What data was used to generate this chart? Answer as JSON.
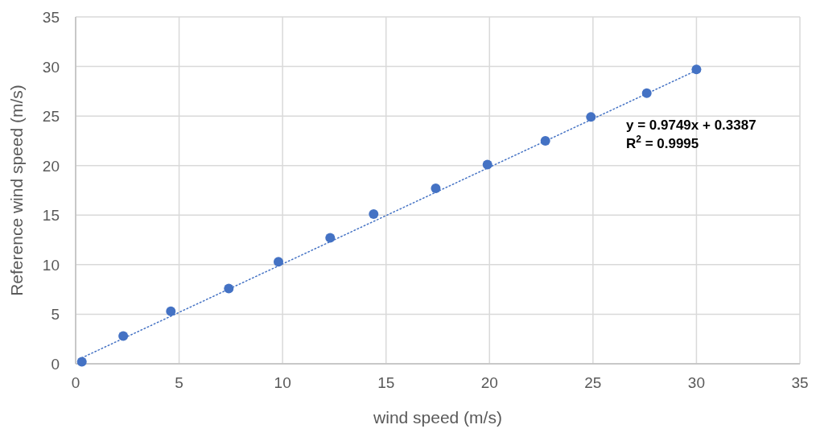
{
  "chart_data": {
    "type": "scatter",
    "xlabel": "wind speed (m/s)",
    "ylabel": "Reference wind speed (m/s)",
    "xlim": [
      0,
      35
    ],
    "xticks": [
      0,
      5,
      10,
      15,
      20,
      25,
      30,
      35
    ],
    "ylim": [
      0,
      35
    ],
    "yticks": [
      0,
      5,
      10,
      15,
      20,
      25,
      30,
      35
    ],
    "grid": true,
    "marker": "circle",
    "annotations": [
      "y = 0.9749x + 0.3387",
      "R$^{2}$ = 0.9995"
    ],
    "series": [
      {
        "color": "#4472c4",
        "x": [
          0.3,
          2.3,
          4.6,
          7.4,
          9.8,
          12.3,
          14.4,
          17.4,
          19.9,
          22.7,
          24.9,
          27.6,
          30.0
        ],
        "values": [
          0.2,
          2.8,
          5.3,
          7.6,
          10.3,
          12.7,
          15.1,
          17.7,
          20.1,
          22.5,
          24.9,
          27.3,
          29.7
        ]
      },
      {
        "type": "line",
        "color": "#4472c4",
        "line_style": "dotted",
        "marker": "none",
        "x": [
          0.3,
          30.0
        ],
        "values": [
          0.6,
          29.6
        ]
      }
    ]
  }
}
